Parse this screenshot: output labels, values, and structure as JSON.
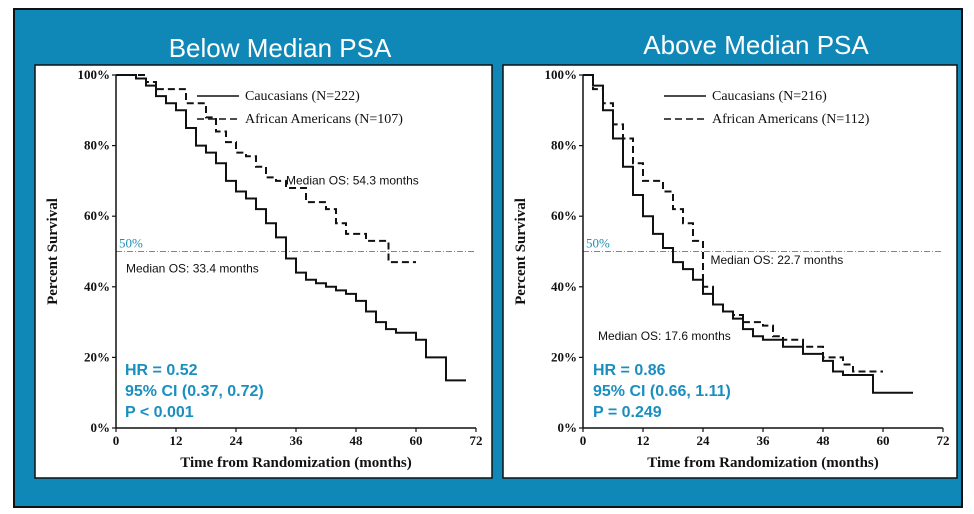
{
  "chart_data": [
    {
      "type": "line",
      "title": "Below Median PSA",
      "xlabel": "Time from Randomization (months)",
      "ylabel": "Percent Survival",
      "xlim": [
        0,
        72
      ],
      "ylim": [
        0,
        100
      ],
      "x_ticks": [
        "0",
        "12",
        "24",
        "36",
        "48",
        "60",
        "72"
      ],
      "y_ticks": [
        "0%",
        "20%",
        "40%",
        "60%",
        "80%",
        "100%"
      ],
      "reference_line": {
        "y": 50,
        "label": "50%"
      },
      "series": [
        {
          "name": "Caucasians (N=222)",
          "style": "solid",
          "x": [
            0,
            2,
            4,
            6,
            8,
            10,
            12,
            14,
            16,
            18,
            20,
            22,
            24,
            26,
            28,
            30,
            32,
            34,
            36,
            38,
            40,
            42,
            44,
            46,
            48,
            50,
            52,
            54,
            56,
            58,
            60,
            62,
            64,
            66,
            70
          ],
          "y": [
            100,
            100,
            99,
            97,
            94,
            92,
            90,
            85,
            80,
            78,
            75,
            70,
            67,
            65,
            62,
            58,
            54,
            48,
            44,
            42,
            41,
            40,
            39,
            38,
            36,
            33,
            30,
            28,
            27,
            27,
            25,
            20,
            20,
            13.5,
            13.5
          ]
        },
        {
          "name": "African Americans (N=107)",
          "style": "dashed",
          "x": [
            0,
            4,
            6,
            8,
            12,
            14,
            18,
            20,
            22,
            24,
            26,
            28,
            30,
            32,
            34,
            38,
            40,
            42,
            44,
            46,
            48,
            50,
            54,
            54.5,
            60
          ],
          "y": [
            100,
            100,
            98,
            96,
            96,
            92,
            88,
            84,
            81,
            78,
            77,
            74,
            71,
            70,
            68,
            64,
            64,
            62,
            58,
            55,
            55,
            53,
            53,
            47,
            47
          ]
        }
      ],
      "annotations": [
        {
          "text": "Median OS: 54.3 months",
          "x": 34,
          "y": 69
        },
        {
          "text": "Median OS: 33.4 months",
          "x": 2,
          "y": 44
        }
      ],
      "stats": [
        "HR = 0.52",
        "95% CI (0.37, 0.72)",
        "P < 0.001"
      ]
    },
    {
      "type": "line",
      "title": "Above Median PSA",
      "xlabel": "Time from Randomization (months)",
      "ylabel": "Percent Survival",
      "xlim": [
        0,
        72
      ],
      "ylim": [
        0,
        100
      ],
      "x_ticks": [
        "0",
        "12",
        "24",
        "36",
        "48",
        "60",
        "72"
      ],
      "y_ticks": [
        "0%",
        "20%",
        "40%",
        "60%",
        "80%",
        "100%"
      ],
      "reference_line": {
        "y": 50,
        "label": "50%"
      },
      "series": [
        {
          "name": "Caucasians (N=216)",
          "style": "solid",
          "x": [
            0,
            1,
            2,
            4,
            6,
            8,
            10,
            12,
            14,
            16,
            18,
            20,
            22,
            24,
            26,
            28,
            30,
            32,
            34,
            36,
            40,
            44,
            48,
            50,
            52,
            56,
            58,
            60,
            66
          ],
          "y": [
            100,
            100,
            97,
            90,
            82,
            74,
            66,
            60,
            55,
            51,
            47,
            45,
            42,
            38,
            35,
            33,
            31,
            28,
            26,
            25,
            23,
            21,
            19,
            16,
            15,
            15,
            10,
            10,
            10
          ]
        },
        {
          "name": "African Americans (N=112)",
          "style": "dashed",
          "x": [
            0,
            2,
            4,
            6,
            8,
            10,
            12,
            14,
            16,
            18,
            20,
            22,
            24,
            26,
            28,
            30,
            32,
            36,
            38,
            40,
            44,
            48,
            52,
            54,
            56,
            60
          ],
          "y": [
            100,
            96,
            92,
            86,
            82,
            75,
            70,
            70,
            67,
            62,
            58,
            53,
            40,
            35,
            33,
            32,
            30,
            29,
            26,
            25,
            23,
            20,
            18,
            16,
            16,
            16
          ]
        }
      ],
      "annotations": [
        {
          "text": "Median OS: 22.7 months",
          "x": 25.5,
          "y": 46.5
        },
        {
          "text": "Median OS: 17.6 months",
          "x": 3,
          "y": 25
        }
      ],
      "stats": [
        "HR = 0.86",
        "95% CI (0.66, 1.11)",
        "P = 0.249"
      ]
    }
  ]
}
